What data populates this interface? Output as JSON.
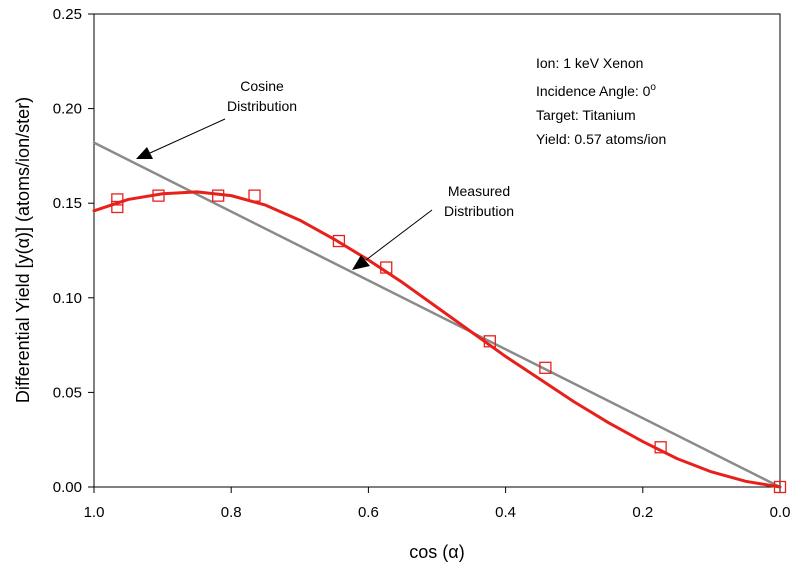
{
  "chart_data": {
    "type": "scatter",
    "xlabel": "cos (α)",
    "ylabel": "Differential Yield [y(α)] (atoms/ion/ster)",
    "xlim": [
      1.0,
      0.0
    ],
    "ylim": [
      0.0,
      0.25
    ],
    "x_axis_reversed": true,
    "grid": false,
    "x_ticks": [
      "1.0",
      "0.8",
      "0.6",
      "0.4",
      "0.2",
      "0.0"
    ],
    "x_tick_values": [
      1.0,
      0.8,
      0.6,
      0.4,
      0.2,
      0.0
    ],
    "y_ticks": [
      "0.00",
      "0.05",
      "0.10",
      "0.15",
      "0.20",
      "0.25"
    ],
    "y_tick_values": [
      0.0,
      0.05,
      0.1,
      0.15,
      0.2,
      0.25
    ],
    "series": [
      {
        "kind": "markers",
        "marker": "open-square",
        "color": "#e8201c",
        "x": [
          0.966,
          0.966,
          0.906,
          0.819,
          0.766,
          0.643,
          0.574,
          0.423,
          0.342,
          0.174,
          0.0
        ],
        "y": [
          0.152,
          0.148,
          0.154,
          0.154,
          0.154,
          0.13,
          0.116,
          0.077,
          0.063,
          0.021,
          0.0
        ]
      },
      {
        "kind": "line",
        "color": "#e8201c",
        "x": [
          1.0,
          0.95,
          0.9,
          0.85,
          0.8,
          0.75,
          0.7,
          0.65,
          0.6,
          0.55,
          0.5,
          0.45,
          0.4,
          0.35,
          0.3,
          0.25,
          0.2,
          0.15,
          0.1,
          0.05,
          0.0
        ],
        "y": [
          0.146,
          0.152,
          0.155,
          0.156,
          0.154,
          0.149,
          0.141,
          0.131,
          0.12,
          0.108,
          0.095,
          0.082,
          0.069,
          0.057,
          0.045,
          0.034,
          0.024,
          0.015,
          0.008,
          0.003,
          0.0
        ]
      },
      {
        "kind": "line",
        "color": "#8a8a8a",
        "x": [
          1.0,
          0.0
        ],
        "y": [
          0.182,
          0.0
        ]
      }
    ],
    "annotations": [
      {
        "id": "cosine",
        "lines": [
          "Cosine",
          "Distribution"
        ]
      },
      {
        "id": "measured",
        "lines": [
          "Measured",
          "Distribution"
        ]
      }
    ],
    "info_lines": [
      "Ion: 1 keV Xenon",
      "Incidence Angle: 0",
      "Target: Titanium",
      "Yield: 0.57 atoms/ion"
    ],
    "info_superscript": "o"
  }
}
